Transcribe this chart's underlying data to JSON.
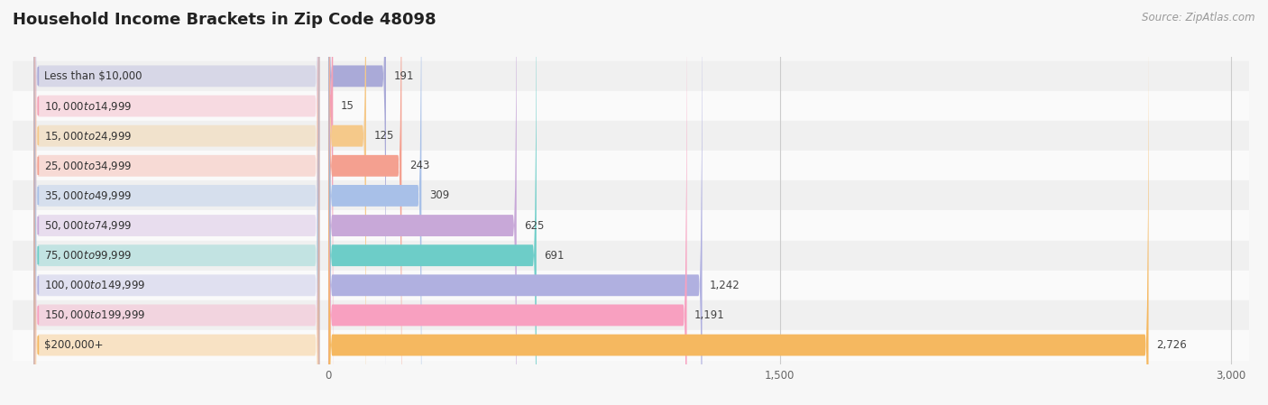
{
  "title": "Household Income Brackets in Zip Code 48098",
  "source": "Source: ZipAtlas.com",
  "categories": [
    "Less than $10,000",
    "$10,000 to $14,999",
    "$15,000 to $24,999",
    "$25,000 to $34,999",
    "$35,000 to $49,999",
    "$50,000 to $74,999",
    "$75,000 to $99,999",
    "$100,000 to $149,999",
    "$150,000 to $199,999",
    "$200,000+"
  ],
  "values": [
    191,
    15,
    125,
    243,
    309,
    625,
    691,
    1242,
    1191,
    2726
  ],
  "bar_colors": [
    "#aaaad8",
    "#f4a0b5",
    "#f5c98a",
    "#f4a090",
    "#a8c0e8",
    "#c8a8d8",
    "#6dcdc8",
    "#b0b0e0",
    "#f8a0c0",
    "#f5b860"
  ],
  "bg_color": "#f7f7f7",
  "row_bg_light": "#f0f0f0",
  "row_bg_white": "#fafafa",
  "xlim_max": 3000,
  "xticks": [
    0,
    1500,
    3000
  ],
  "title_fontsize": 13,
  "label_fontsize": 8.5,
  "value_fontsize": 8.5,
  "source_fontsize": 8.5
}
